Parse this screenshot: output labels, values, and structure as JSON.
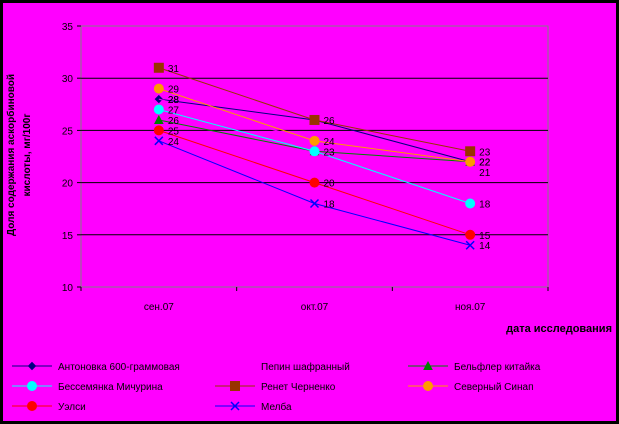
{
  "chart_data": {
    "type": "line",
    "title": "",
    "xlabel": "дата исследования",
    "ylabel": "Доля содержания аскорбиновой кислоты, мг/100г",
    "ylabel_line1": "Доля содержания аскорбиновой",
    "ylabel_line2": "кислоты, мг/100г",
    "categories": [
      "сен.07",
      "окт.07",
      "ноя.07"
    ],
    "ylim": [
      10,
      35
    ],
    "yticks": [
      "10",
      "15",
      "20",
      "25",
      "30",
      "35"
    ],
    "grid": true,
    "legend_position": "bottom",
    "series": [
      {
        "name": "Антоновка 600-граммовая",
        "values": [
          28,
          26,
          22
        ],
        "color": "#000080",
        "marker": "diamond",
        "labels": [
          "28",
          "",
          "22"
        ]
      },
      {
        "name": "Пепин шафранный",
        "values": [
          28,
          24,
          22
        ],
        "color": "#FF00FF",
        "marker": "none",
        "labels": [
          "28",
          "",
          ""
        ]
      },
      {
        "name": "Бельфлер китайка",
        "values": [
          26,
          23,
          22
        ],
        "color": "#008000",
        "marker": "triangle",
        "labels": [
          "26",
          "",
          ""
        ]
      },
      {
        "name": "Бессемянка Мичурина",
        "values": [
          27,
          23,
          18
        ],
        "color": "#00FFFF",
        "marker": "circle",
        "labels": [
          "27",
          "23",
          "18"
        ]
      },
      {
        "name": "Ренет Черненко",
        "values": [
          31,
          26,
          23
        ],
        "color": "#993300",
        "marker": "square",
        "labels": [
          "31",
          "26",
          "23"
        ]
      },
      {
        "name": "Северный Синап",
        "values": [
          29,
          24,
          22
        ],
        "color": "#FF9900",
        "marker": "circle",
        "labels": [
          "29",
          "24",
          "22"
        ]
      },
      {
        "name": "Уэлси",
        "values": [
          25,
          20,
          15
        ],
        "color": "#FF0000",
        "marker": "circle",
        "labels": [
          "25",
          "20",
          "15"
        ]
      },
      {
        "name": "Мелба",
        "values": [
          24,
          18,
          14
        ],
        "color": "#0000FF",
        "marker": "x",
        "labels": [
          "24",
          "18",
          "14"
        ]
      }
    ],
    "extra_labels": [
      {
        "text": "21",
        "x": "ноя.07",
        "y": 21
      }
    ]
  }
}
